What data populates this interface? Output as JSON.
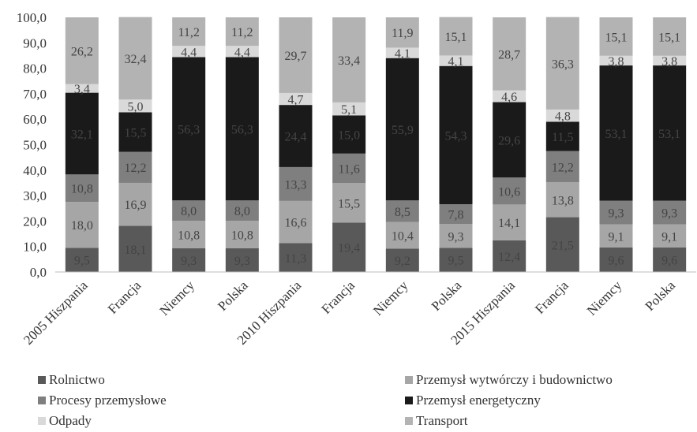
{
  "chart_data": {
    "type": "bar",
    "stacked": true,
    "categories": [
      "2005 Hiszpania",
      "Francja",
      "Niemcy",
      "Polska",
      "2010 Hiszpania",
      "Francja",
      "Niemcy",
      "Polska",
      "2015 Hiszpania",
      "Francja",
      "Niemcy",
      "Polska"
    ],
    "ylim": [
      0,
      100
    ],
    "yticks": [
      "0,0",
      "10,0",
      "20,0",
      "30,0",
      "40,0",
      "50,0",
      "60,0",
      "70,0",
      "80,0",
      "90,0",
      "100,0"
    ],
    "grid": false,
    "legend_position": "bottom",
    "series": [
      {
        "name": "Rolnictwo",
        "color": "#595959",
        "values": [
          9.5,
          18.1,
          9.3,
          9.3,
          11.3,
          19.4,
          9.2,
          9.5,
          12.4,
          21.5,
          9.6,
          9.6
        ],
        "labels": [
          "9,5",
          "18,1",
          "9,3",
          "9,3",
          "11,3",
          "19,4",
          "9,2",
          "9,5",
          "12,4",
          "21,5",
          "9,6",
          "9,6"
        ]
      },
      {
        "name": "Przemysł wytwórczy i budownictwo",
        "color": "#a6a6a6",
        "values": [
          18.0,
          16.9,
          10.8,
          10.8,
          16.6,
          15.5,
          10.4,
          9.3,
          14.1,
          13.8,
          9.1,
          9.1
        ],
        "labels": [
          "18,0",
          "16,9",
          "10,8",
          "10,8",
          "16,6",
          "15,5",
          "10,4",
          "9,3",
          "14,1",
          "13,8",
          "9,1",
          "9,1"
        ]
      },
      {
        "name": "Procesy przemysłowe",
        "color": "#7f7f7f",
        "values": [
          10.8,
          12.2,
          8.0,
          8.0,
          13.3,
          11.6,
          8.5,
          7.8,
          10.6,
          12.2,
          9.3,
          9.3
        ],
        "labels": [
          "10,8",
          "12,2",
          "8,0",
          "8,0",
          "13,3",
          "11,6",
          "8,5",
          "7,8",
          "10,6",
          "12,2",
          "9,3",
          "9,3"
        ]
      },
      {
        "name": "Przemysł energetyczny",
        "color": "#1a1a1a",
        "values": [
          32.1,
          15.5,
          56.3,
          56.3,
          24.4,
          15.0,
          55.9,
          54.3,
          29.6,
          11.5,
          53.1,
          53.1
        ],
        "labels": [
          "32,1",
          "15,5",
          "56,3",
          "56,3",
          "24,4",
          "15,0",
          "55,9",
          "54,3",
          "29,6",
          "11,5",
          "53,1",
          "53,1"
        ]
      },
      {
        "name": "Odpady",
        "color": "#d9d9d9",
        "values": [
          3.4,
          5.0,
          4.4,
          4.4,
          4.7,
          5.1,
          4.1,
          4.1,
          4.6,
          4.8,
          3.8,
          3.8
        ],
        "labels": [
          "3,4",
          "5,0",
          "4,4",
          "4,4",
          "4,7",
          "5,1",
          "4,1",
          "4,1",
          "4,6",
          "4,8",
          "3,8",
          "3,8"
        ]
      },
      {
        "name": "Transport",
        "color": "#b3b3b3",
        "values": [
          26.2,
          32.4,
          11.2,
          11.2,
          29.7,
          33.4,
          11.9,
          15.1,
          28.7,
          36.3,
          15.1,
          15.1
        ],
        "labels": [
          "26,2",
          "32,4",
          "11,2",
          "11,2",
          "29,7",
          "33,4",
          "11,9",
          "15,1",
          "28,7",
          "36,3",
          "15,1",
          "15,1"
        ]
      }
    ]
  }
}
